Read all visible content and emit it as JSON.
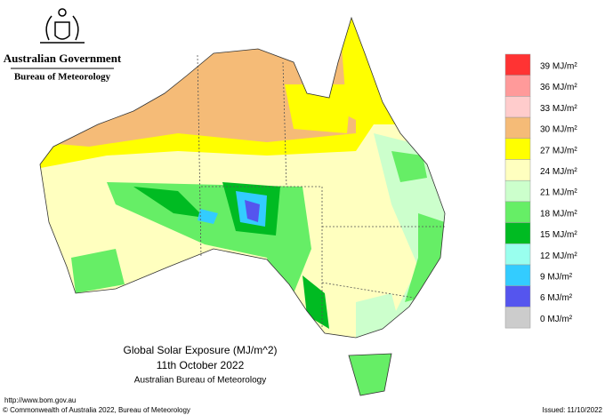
{
  "header": {
    "agency": "Australian Government",
    "bureau": "Bureau of Meteorology"
  },
  "map": {
    "title": "Global Solar Exposure (MJ/m^2)",
    "date": "11th October 2022",
    "source": "Australian Bureau of Meteorology"
  },
  "legend": [
    {
      "label": "39 MJ/m²",
      "color": "#ff3333"
    },
    {
      "label": "36 MJ/m²",
      "color": "#ff9a9a"
    },
    {
      "label": "33 MJ/m²",
      "color": "#ffcccc"
    },
    {
      "label": "30 MJ/m²",
      "color": "#f5bb77"
    },
    {
      "label": "27 MJ/m²",
      "color": "#ffff00"
    },
    {
      "label": "24 MJ/m²",
      "color": "#ffffbf"
    },
    {
      "label": "21 MJ/m²",
      "color": "#ccffcc"
    },
    {
      "label": "18 MJ/m²",
      "color": "#66ee66"
    },
    {
      "label": "15 MJ/m²",
      "color": "#00bb22"
    },
    {
      "label": "12 MJ/m²",
      "color": "#99ffee"
    },
    {
      "label": "9 MJ/m²",
      "color": "#33ccff"
    },
    {
      "label": "6 MJ/m²",
      "color": "#5555ee"
    },
    {
      "label": "0 MJ/m²",
      "color": "#cccccc"
    }
  ],
  "footer": {
    "url": "http://www.bom.gov.au",
    "copyright": "© Commonwealth of Australia 2022, Bureau of Meteorology",
    "issued": "Issued: 11/10/2022"
  }
}
